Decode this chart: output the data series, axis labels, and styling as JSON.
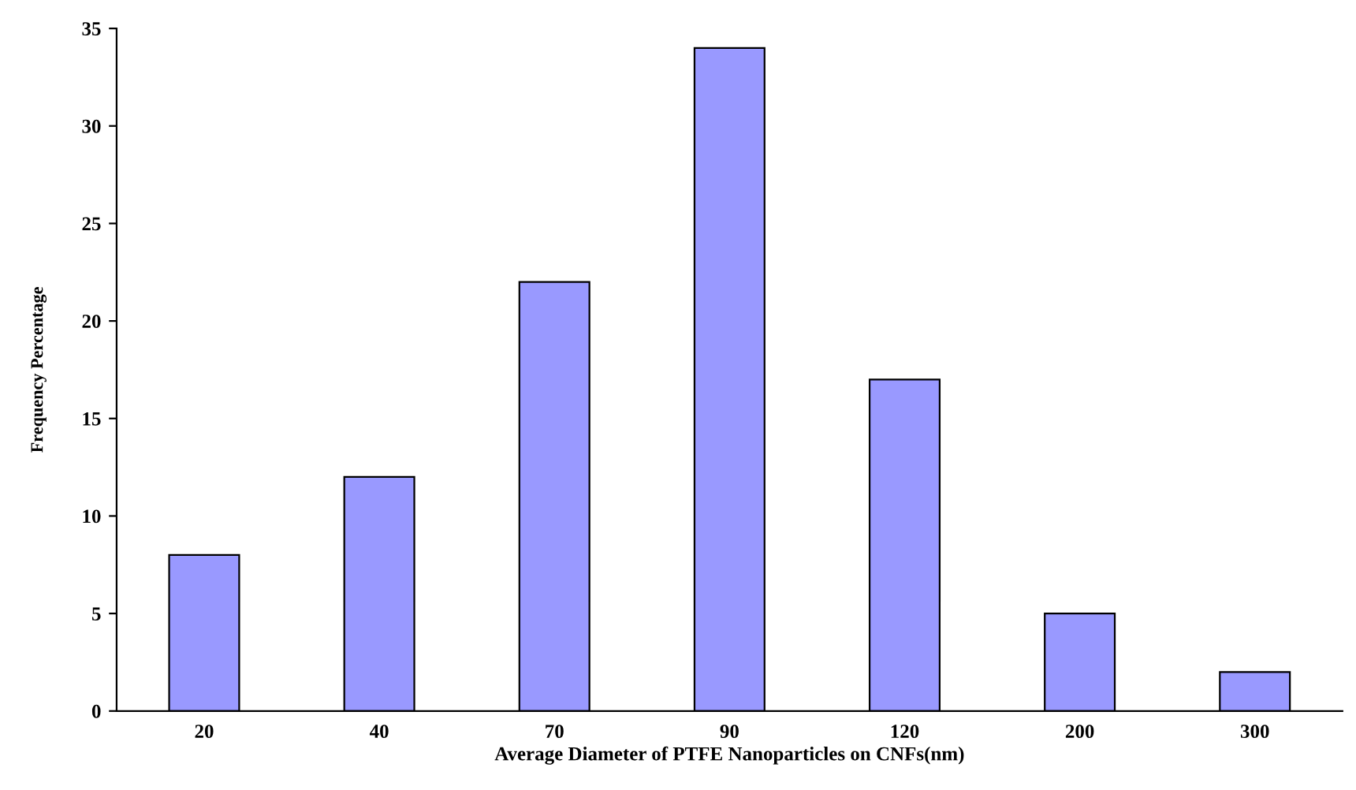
{
  "chart_data": {
    "type": "bar",
    "xlabel": "Average Diameter of PTFE Nanoparticles on CNFs(nm)",
    "ylabel": "Frequency Percentage",
    "categories": [
      "20",
      "40",
      "70",
      "90",
      "120",
      "200",
      "300"
    ],
    "values": [
      8,
      12,
      22,
      34,
      17,
      5,
      2
    ],
    "color": "#9999ff",
    "ylim": [
      0,
      35
    ],
    "yticks": [
      0,
      5,
      10,
      15,
      20,
      25,
      30,
      35
    ],
    "grid": false
  }
}
